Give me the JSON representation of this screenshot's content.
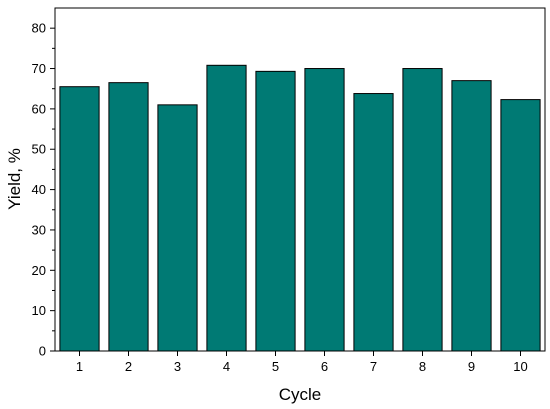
{
  "chart_data": {
    "type": "bar",
    "xlabel": "Cycle",
    "ylabel": "Yield, %",
    "categories": [
      "1",
      "2",
      "3",
      "4",
      "5",
      "6",
      "7",
      "8",
      "9",
      "10"
    ],
    "values": [
      65.5,
      66.5,
      61,
      70.8,
      69.3,
      70,
      63.8,
      70,
      67,
      62.3
    ],
    "ylim": [
      0,
      85
    ],
    "yticks": [
      "0",
      "10",
      "20",
      "30",
      "40",
      "50",
      "60",
      "70",
      "80"
    ],
    "grid": false,
    "bar_color": "#007a74",
    "bar_edge_color": "#000000"
  }
}
